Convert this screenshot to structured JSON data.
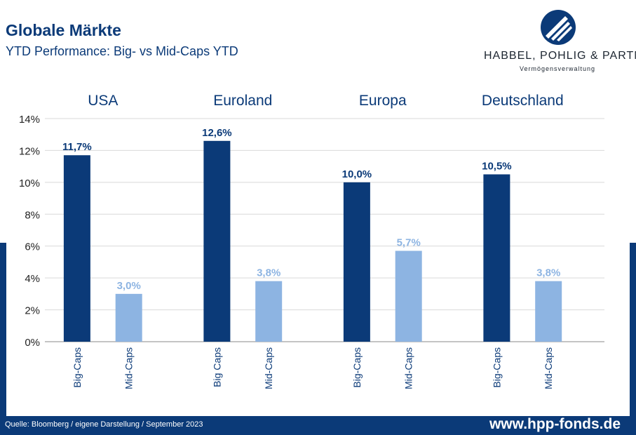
{
  "header": {
    "title": "Globale Märkte",
    "subtitle": "YTD Performance: Big- vs Mid-Caps YTD"
  },
  "logo": {
    "name": "HABBEL, POHLIG & PARTNER",
    "subtitle": "Vermögensverwaltung"
  },
  "footer": {
    "source": "Quelle: Bloomberg / eigene Darstellung / September 2023",
    "url": "www.hpp-fonds.de"
  },
  "colors": {
    "brand_navy": "#0b3a78",
    "big_caps": "#0b3a78",
    "mid_caps": "#8db4e2"
  },
  "chart_data": {
    "type": "bar",
    "ylim": [
      0,
      14
    ],
    "ytick_step": 2,
    "ytick_labels": [
      "0%",
      "2%",
      "4%",
      "6%",
      "8%",
      "10%",
      "12%",
      "14%"
    ],
    "grid": true,
    "groups": [
      {
        "name": "USA",
        "bars": [
          {
            "category": "Big-Caps",
            "value": 11.7,
            "label": "11,7%"
          },
          {
            "category": "Mid-Caps",
            "value": 3.0,
            "label": "3,0%"
          }
        ]
      },
      {
        "name": "Euroland",
        "bars": [
          {
            "category": "Big Caps",
            "value": 12.6,
            "label": "12,6%"
          },
          {
            "category": "Mid-Caps",
            "value": 3.8,
            "label": "3,8%"
          }
        ]
      },
      {
        "name": "Europa",
        "bars": [
          {
            "category": "Big-Caps",
            "value": 10.0,
            "label": "10,0%"
          },
          {
            "category": "Mid-Caps",
            "value": 5.7,
            "label": "5,7%"
          }
        ]
      },
      {
        "name": "Deutschland",
        "bars": [
          {
            "category": "Big-Caps",
            "value": 10.5,
            "label": "10,5%"
          },
          {
            "category": "Mid-Caps",
            "value": 3.8,
            "label": "3,8%"
          }
        ]
      }
    ]
  }
}
